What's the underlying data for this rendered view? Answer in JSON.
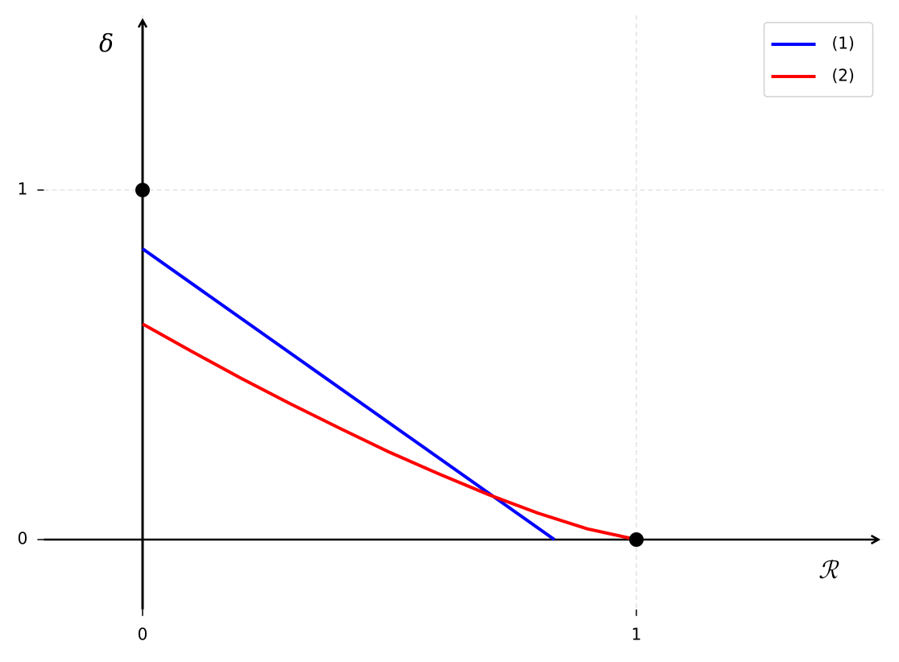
{
  "chart_data": {
    "type": "line",
    "xlabel": "ℛ",
    "ylabel": "δ",
    "xlim": [
      -0.2,
      1.5
    ],
    "ylim": [
      -0.2,
      1.5
    ],
    "xticks": [
      0,
      1
    ],
    "yticks": [
      0,
      1
    ],
    "grid": true,
    "legend": "upper right",
    "series": [
      {
        "name": "(1)",
        "color": "#0000ff",
        "x": [
          0,
          0.834
        ],
        "values": [
          0.832,
          0
        ]
      },
      {
        "name": "(2)",
        "color": "#ff0000",
        "x": [
          0,
          0.1,
          0.2,
          0.3,
          0.4,
          0.5,
          0.6,
          0.7,
          0.8,
          0.9,
          1.0
        ],
        "values": [
          0.617,
          0.538,
          0.461,
          0.388,
          0.318,
          0.25,
          0.188,
          0.129,
          0.076,
          0.031,
          0
        ]
      }
    ],
    "points": {
      "color": "#000000",
      "x": [
        0,
        1
      ],
      "y": [
        1,
        0
      ]
    }
  }
}
